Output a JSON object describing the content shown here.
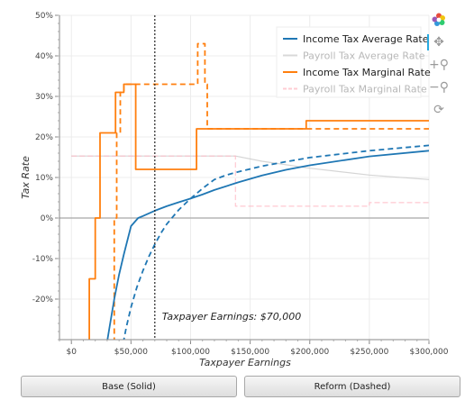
{
  "chart_data": {
    "type": "line",
    "title": "",
    "xlabel": "Taxpayer Earnings",
    "ylabel": "Tax Rate",
    "xlim": [
      -10000,
      300000
    ],
    "ylim": [
      -30,
      50
    ],
    "x_ticks": [
      0,
      50000,
      100000,
      150000,
      200000,
      250000,
      300000
    ],
    "x_tick_labels": [
      "$0",
      "$50,000",
      "$100,000",
      "$150,000",
      "$200,000",
      "$250,000",
      "$300,000"
    ],
    "y_ticks": [
      -20,
      -10,
      0,
      10,
      20,
      30,
      40,
      50
    ],
    "y_tick_labels": [
      "-20%",
      "-10%",
      "0%",
      "10%",
      "20%",
      "30%",
      "40%",
      "50%"
    ],
    "grid": true,
    "legend_position": "top-right",
    "colors": {
      "income": "#1f77b4",
      "payroll_avg": "#c7c7c7",
      "marginal": "#ff7f0e",
      "payroll_marginal": "#ffb6c1"
    },
    "reference_line": {
      "x": 70000,
      "label": "Taxpayer Earnings: $70,000"
    },
    "series": [
      {
        "name": "Income Tax Average Rate",
        "role": "base",
        "dashed": false,
        "faded": false,
        "x": [
          28000,
          32000,
          36000,
          40000,
          44000,
          50000,
          56000,
          60000,
          70000,
          80000,
          90000,
          100000,
          110000,
          120000,
          140000,
          160000,
          180000,
          200000,
          250000,
          300000
        ],
        "y": [
          -34,
          -27,
          -20,
          -14,
          -9,
          -2,
          0,
          0.5,
          1.8,
          2.9,
          3.9,
          4.8,
          5.8,
          6.9,
          8.8,
          10.5,
          11.9,
          13.0,
          15.2,
          16.6
        ]
      },
      {
        "name": "Income Tax Average Rate",
        "role": "reform",
        "dashed": true,
        "faded": false,
        "x": [
          42000,
          46000,
          50000,
          55000,
          60000,
          65000,
          70000,
          75000,
          80000,
          90000,
          100000,
          110000,
          120000,
          130000,
          140000,
          160000,
          180000,
          200000,
          250000,
          300000
        ],
        "y": [
          -33,
          -27,
          -22,
          -17,
          -13,
          -9.5,
          -6.5,
          -3.8,
          -1.5,
          2,
          4.8,
          7.3,
          9.5,
          10.6,
          11.4,
          12.8,
          13.9,
          14.9,
          16.6,
          17.9
        ]
      },
      {
        "name": "Payroll Tax Average Rate",
        "role": "base",
        "dashed": false,
        "faded": true,
        "x": [
          0,
          137700,
          160000,
          200000,
          250000,
          300000
        ],
        "y": [
          15.3,
          15.3,
          14.0,
          12.3,
          10.6,
          9.5
        ]
      },
      {
        "name": "Income Tax Marginal Rate",
        "role": "base",
        "dashed": false,
        "faded": false,
        "x": [
          15000,
          15000,
          20000,
          20000,
          24000,
          24000,
          37000,
          37000,
          44000,
          44000,
          54000,
          54000,
          105000,
          105000,
          197000,
          197000,
          300000
        ],
        "y": [
          -33,
          -15,
          -15,
          0,
          0,
          21,
          21,
          31,
          31,
          33,
          33,
          12,
          12,
          22,
          22,
          24,
          24
        ]
      },
      {
        "name": "Income Tax Marginal Rate",
        "role": "reform",
        "dashed": true,
        "faded": false,
        "x": [
          36000,
          36000,
          38000,
          38000,
          41000,
          41000,
          44000,
          44000,
          50000,
          50000,
          106000,
          106000,
          112000,
          112000,
          114000,
          114000,
          300000
        ],
        "y": [
          -33,
          0,
          0,
          21,
          21,
          31,
          31,
          33,
          33,
          33,
          33,
          43,
          43,
          33,
          33,
          22,
          22
        ]
      },
      {
        "name": "Payroll Tax Marginal Rate",
        "role": "base",
        "dashed": false,
        "faded": true,
        "x": [
          0,
          137700,
          137700,
          250000,
          250000,
          300000
        ],
        "y": [
          15.3,
          15.3,
          2.9,
          2.9,
          3.8,
          3.8
        ]
      }
    ]
  },
  "legend": [
    {
      "label": "Income Tax Average Rate",
      "color": "#1f77b4",
      "faded": false
    },
    {
      "label": "Payroll Tax Average Rate",
      "color": "#c7c7c7",
      "faded": true
    },
    {
      "label": "Income Tax Marginal Rate",
      "color": "#ff7f0e",
      "faded": false
    },
    {
      "label": "Payroll Tax Marginal Rate",
      "color": "#ffb6c1",
      "faded": true
    }
  ],
  "toolbar": {
    "icons": [
      "bokeh-logo-icon",
      "pan-icon",
      "wheel-zoom-icon",
      "zoom-out-icon",
      "reset-icon"
    ]
  },
  "buttons": {
    "base_label": "Base (Solid)",
    "reform_label": "Reform (Dashed)"
  }
}
